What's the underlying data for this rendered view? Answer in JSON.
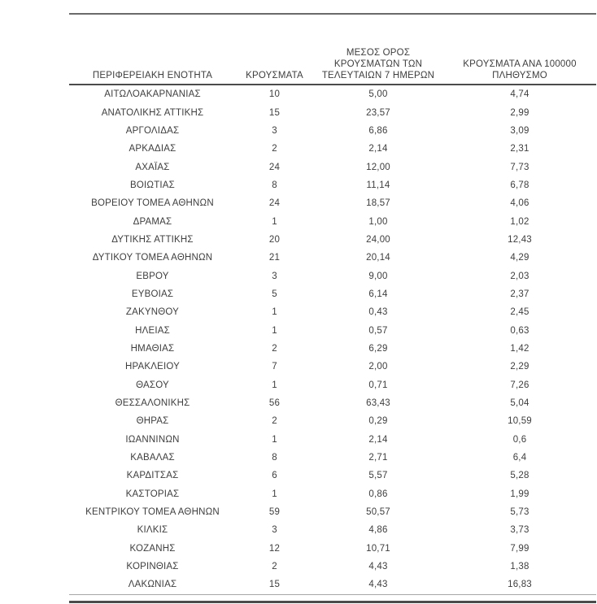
{
  "document": {
    "kind": "statistics-table-page",
    "language": "el"
  },
  "colors": {
    "text": "#3e3e3e",
    "rule-top": "#6a6a6a",
    "rule-header": "#4b4b4b",
    "rule-thin": "#a6a6a6",
    "rule-thick": "#4b4b4b"
  },
  "table": {
    "columns": [
      {
        "id": "region",
        "label": "ΠΕΡΙΦΕΡΕΙΑΚΗ ΕΝΟΤΗΤΑ",
        "lines": [
          "ΠΕΡΙΦΕΡΕΙΑΚΗ ΕΝΟΤΗΤΑ"
        ]
      },
      {
        "id": "cases",
        "label": "ΚΡΟΥΣΜΑΤΑ",
        "lines": [
          "ΚΡΟΥΣΜΑΤΑ"
        ]
      },
      {
        "id": "avg7",
        "label": "ΜΕΣΟΣ ΟΡΟΣ ΚΡΟΥΣΜΑΤΩΝ ΤΩΝ ΤΕΛΕΥΤΑΙΩΝ 7 ΗΜΕΡΩΝ",
        "lines": [
          "ΜΕΣΟΣ ΟΡΟΣ",
          "ΚΡΟΥΣΜΑΤΩΝ ΤΩΝ",
          "ΤΕΛΕΥΤΑΙΩΝ 7 ΗΜΕΡΩΝ"
        ]
      },
      {
        "id": "per100k",
        "label": "ΚΡΟΥΣΜΑΤΑ ΑΝΑ 100000 ΠΛΗΘΥΣΜΟ",
        "lines": [
          "ΚΡΟΥΣΜΑΤΑ ΑΝΑ 100000",
          "ΠΛΗΘΥΣΜΟ"
        ]
      }
    ],
    "rows": [
      [
        "ΑΙΤΩΛΟΑΚΑΡΝΑΝΙΑΣ",
        "10",
        "5,00",
        "4,74"
      ],
      [
        "ΑΝΑΤΟΛΙΚΗΣ ΑΤΤΙΚΗΣ",
        "15",
        "23,57",
        "2,99"
      ],
      [
        "ΑΡΓΟΛΙΔΑΣ",
        "3",
        "6,86",
        "3,09"
      ],
      [
        "ΑΡΚΑΔΙΑΣ",
        "2",
        "2,14",
        "2,31"
      ],
      [
        "ΑΧΑΪΑΣ",
        "24",
        "12,00",
        "7,73"
      ],
      [
        "ΒΟΙΩΤΙΑΣ",
        "8",
        "11,14",
        "6,78"
      ],
      [
        "ΒΟΡΕΙΟΥ ΤΟΜΕΑ ΑΘΗΝΩΝ",
        "24",
        "18,57",
        "4,06"
      ],
      [
        "ΔΡΑΜΑΣ",
        "1",
        "1,00",
        "1,02"
      ],
      [
        "ΔΥΤΙΚΗΣ ΑΤΤΙΚΗΣ",
        "20",
        "24,00",
        "12,43"
      ],
      [
        "ΔΥΤΙΚΟΥ ΤΟΜΕΑ ΑΘΗΝΩΝ",
        "21",
        "20,14",
        "4,29"
      ],
      [
        "ΕΒΡΟΥ",
        "3",
        "9,00",
        "2,03"
      ],
      [
        "ΕΥΒΟΙΑΣ",
        "5",
        "6,14",
        "2,37"
      ],
      [
        "ΖΑΚΥΝΘΟΥ",
        "1",
        "0,43",
        "2,45"
      ],
      [
        "ΗΛΕΙΑΣ",
        "1",
        "0,57",
        "0,63"
      ],
      [
        "ΗΜΑΘΙΑΣ",
        "2",
        "6,29",
        "1,42"
      ],
      [
        "ΗΡΑΚΛΕΙΟΥ",
        "7",
        "2,00",
        "2,29"
      ],
      [
        "ΘΑΣΟΥ",
        "1",
        "0,71",
        "7,26"
      ],
      [
        "ΘΕΣΣΑΛΟΝΙΚΗΣ",
        "56",
        "63,43",
        "5,04"
      ],
      [
        "ΘΗΡΑΣ",
        "2",
        "0,29",
        "10,59"
      ],
      [
        "ΙΩΑΝΝΙΝΩΝ",
        "1",
        "2,14",
        "0,6"
      ],
      [
        "ΚΑΒΑΛΑΣ",
        "8",
        "2,71",
        "6,4"
      ],
      [
        "ΚΑΡΔΙΤΣΑΣ",
        "6",
        "5,57",
        "5,28"
      ],
      [
        "ΚΑΣΤΟΡΙΑΣ",
        "1",
        "0,86",
        "1,99"
      ],
      [
        "ΚΕΝΤΡΙΚΟΥ ΤΟΜΕΑ ΑΘΗΝΩΝ",
        "59",
        "50,57",
        "5,73"
      ],
      [
        "ΚΙΛΚΙΣ",
        "3",
        "4,86",
        "3,73"
      ],
      [
        "ΚΟΖΑΝΗΣ",
        "12",
        "10,71",
        "7,99"
      ],
      [
        "ΚΟΡΙΝΘΙΑΣ",
        "2",
        "4,43",
        "1,38"
      ],
      [
        "ΛΑΚΩΝΙΑΣ",
        "15",
        "4,43",
        "16,83"
      ]
    ]
  }
}
